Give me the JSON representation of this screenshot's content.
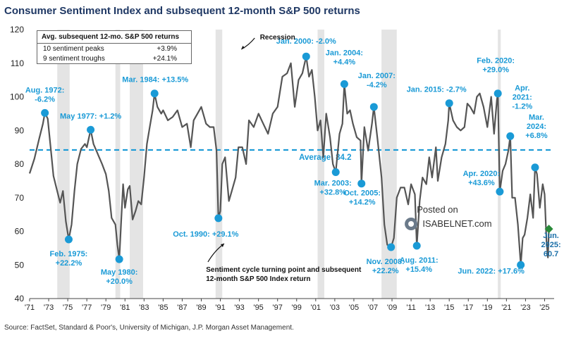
{
  "title": "Consumer Sentiment Index and subsequent 12-month S&P 500 returns",
  "source": "Source: FactSet, Standard & Poor's, University of Michigan, J.P. Morgan Asset Management.",
  "watermark": {
    "line1": "Posted on",
    "line2": "ISABELNET.com"
  },
  "table": {
    "header": "Avg. subsequent 12-mo. S&P 500 returns",
    "rows": [
      {
        "label": "10 sentiment peaks",
        "value": "+3.9%"
      },
      {
        "label": "9 sentiment troughs",
        "value": "+24.1%"
      }
    ]
  },
  "colors": {
    "line": "#555555",
    "accent": "#1a9ad6",
    "average": "#1a9ad6",
    "recession": "#e4e4e4",
    "title": "#1f3864"
  },
  "chart_data": {
    "type": "line",
    "title": "Consumer Sentiment Index and subsequent 12-month S&P 500 returns",
    "xlim": [
      1971,
      2026
    ],
    "ylim": [
      40,
      120
    ],
    "yticks": [
      40,
      50,
      60,
      70,
      80,
      90,
      100,
      110,
      120
    ],
    "xticks": [
      "'71",
      "'73",
      "'75",
      "'77",
      "'79",
      "'81",
      "'83",
      "'85",
      "'87",
      "'89",
      "'91",
      "'93",
      "'95",
      "'97",
      "'99",
      "'01",
      "'03",
      "'05",
      "'07",
      "'09",
      "'11",
      "'13",
      "'15",
      "'17",
      "'19",
      "'21",
      "'23",
      "'25"
    ],
    "average": {
      "value": 84.2,
      "label": "Average: 84.2"
    },
    "recessions": [
      [
        1973.9,
        1975.2
      ],
      [
        1980.0,
        1980.5
      ],
      [
        1981.5,
        1982.9
      ],
      [
        1990.5,
        1991.2
      ],
      [
        2001.2,
        2001.9
      ],
      [
        2007.9,
        2009.5
      ],
      [
        2020.1,
        2020.4
      ]
    ],
    "recession_label": "Recession",
    "annotation_label": "Sentiment cycle turning point and subsequent 12-month S&P 500 Index return",
    "series": [
      {
        "points": [
          [
            1971.0,
            77.2
          ],
          [
            1971.5,
            81.6
          ],
          [
            1972.0,
            87.5
          ],
          [
            1972.4,
            92.0
          ],
          [
            1972.6,
            95.2
          ],
          [
            1972.9,
            93.5
          ],
          [
            1973.2,
            85.0
          ],
          [
            1973.5,
            76.5
          ],
          [
            1973.8,
            73.0
          ],
          [
            1974.2,
            68.5
          ],
          [
            1974.5,
            72.0
          ],
          [
            1974.8,
            63.0
          ],
          [
            1975.1,
            57.6
          ],
          [
            1975.4,
            62.0
          ],
          [
            1975.7,
            72.0
          ],
          [
            1976.0,
            80.0
          ],
          [
            1976.4,
            84.5
          ],
          [
            1976.8,
            86.0
          ],
          [
            1977.0,
            85.0
          ],
          [
            1977.4,
            90.2
          ],
          [
            1977.7,
            86.0
          ],
          [
            1978.0,
            84.0
          ],
          [
            1978.3,
            82.0
          ],
          [
            1978.6,
            80.0
          ],
          [
            1979.0,
            77.0
          ],
          [
            1979.3,
            72.0
          ],
          [
            1979.6,
            64.0
          ],
          [
            1980.0,
            62.0
          ],
          [
            1980.2,
            56.0
          ],
          [
            1980.4,
            51.7
          ],
          [
            1980.6,
            63.0
          ],
          [
            1980.8,
            74.0
          ],
          [
            1981.0,
            67.0
          ],
          [
            1981.3,
            72.5
          ],
          [
            1981.5,
            73.5
          ],
          [
            1981.8,
            63.5
          ],
          [
            1982.1,
            66.0
          ],
          [
            1982.4,
            69.0
          ],
          [
            1982.7,
            68.0
          ],
          [
            1983.0,
            76.0
          ],
          [
            1983.3,
            86.0
          ],
          [
            1983.6,
            91.0
          ],
          [
            1983.9,
            96.0
          ],
          [
            1984.1,
            101.0
          ],
          [
            1984.4,
            97.0
          ],
          [
            1984.8,
            95.0
          ],
          [
            1985.0,
            96.0
          ],
          [
            1985.5,
            93.0
          ],
          [
            1986.0,
            94.0
          ],
          [
            1986.5,
            96.0
          ],
          [
            1987.0,
            91.0
          ],
          [
            1987.5,
            92.0
          ],
          [
            1987.9,
            85.0
          ],
          [
            1988.2,
            93.0
          ],
          [
            1988.6,
            95.0
          ],
          [
            1989.0,
            97.0
          ],
          [
            1989.5,
            92.0
          ],
          [
            1989.9,
            91.0
          ],
          [
            1990.3,
            91.0
          ],
          [
            1990.6,
            84.0
          ],
          [
            1990.8,
            63.9
          ],
          [
            1991.0,
            66.0
          ],
          [
            1991.2,
            80.0
          ],
          [
            1991.5,
            82.0
          ],
          [
            1991.9,
            69.0
          ],
          [
            1992.2,
            72.0
          ],
          [
            1992.6,
            76.0
          ],
          [
            1992.9,
            85.0
          ],
          [
            1993.3,
            85.0
          ],
          [
            1993.7,
            80.0
          ],
          [
            1994.0,
            93.0
          ],
          [
            1994.5,
            91.0
          ],
          [
            1995.0,
            95.0
          ],
          [
            1995.5,
            92.0
          ],
          [
            1996.0,
            89.0
          ],
          [
            1996.5,
            95.0
          ],
          [
            1997.0,
            97.0
          ],
          [
            1997.5,
            106.0
          ],
          [
            1998.0,
            107.0
          ],
          [
            1998.4,
            110.0
          ],
          [
            1998.8,
            97.0
          ],
          [
            1999.2,
            105.0
          ],
          [
            1999.6,
            107.0
          ],
          [
            2000.0,
            112.0
          ],
          [
            2000.3,
            106.0
          ],
          [
            2000.6,
            108.0
          ],
          [
            2000.9,
            100.0
          ],
          [
            2001.2,
            90.0
          ],
          [
            2001.5,
            93.0
          ],
          [
            2001.8,
            82.0
          ],
          [
            2002.1,
            95.0
          ],
          [
            2002.5,
            88.0
          ],
          [
            2002.8,
            80.0
          ],
          [
            2003.1,
            77.6
          ],
          [
            2003.5,
            89.0
          ],
          [
            2003.8,
            92.0
          ],
          [
            2004.0,
            103.8
          ],
          [
            2004.3,
            95.0
          ],
          [
            2004.6,
            96.0
          ],
          [
            2004.9,
            92.0
          ],
          [
            2005.3,
            88.0
          ],
          [
            2005.7,
            87.0
          ],
          [
            2005.8,
            74.2
          ],
          [
            2006.1,
            91.0
          ],
          [
            2006.5,
            84.0
          ],
          [
            2006.9,
            92.0
          ],
          [
            2007.1,
            97.0
          ],
          [
            2007.5,
            87.0
          ],
          [
            2007.9,
            76.0
          ],
          [
            2008.2,
            62.0
          ],
          [
            2008.5,
            56.0
          ],
          [
            2008.9,
            55.3
          ],
          [
            2009.2,
            58.0
          ],
          [
            2009.5,
            70.0
          ],
          [
            2009.9,
            73.0
          ],
          [
            2010.3,
            73.0
          ],
          [
            2010.7,
            68.0
          ],
          [
            2011.0,
            74.0
          ],
          [
            2011.4,
            71.0
          ],
          [
            2011.6,
            55.7
          ],
          [
            2011.9,
            69.0
          ],
          [
            2012.2,
            76.0
          ],
          [
            2012.6,
            74.0
          ],
          [
            2012.9,
            82.0
          ],
          [
            2013.2,
            76.0
          ],
          [
            2013.6,
            85.0
          ],
          [
            2013.8,
            75.0
          ],
          [
            2014.2,
            82.0
          ],
          [
            2014.6,
            86.0
          ],
          [
            2014.9,
            93.0
          ],
          [
            2015.0,
            98.1
          ],
          [
            2015.4,
            93.0
          ],
          [
            2015.8,
            91.0
          ],
          [
            2016.2,
            90.0
          ],
          [
            2016.6,
            91.0
          ],
          [
            2016.9,
            98.0
          ],
          [
            2017.2,
            97.0
          ],
          [
            2017.6,
            95.0
          ],
          [
            2017.9,
            100.0
          ],
          [
            2018.2,
            101.0
          ],
          [
            2018.6,
            97.0
          ],
          [
            2019.0,
            91.0
          ],
          [
            2019.4,
            100.0
          ],
          [
            2019.7,
            89.0
          ],
          [
            2020.0,
            99.0
          ],
          [
            2020.1,
            101.0
          ],
          [
            2020.3,
            71.8
          ],
          [
            2020.6,
            78.0
          ],
          [
            2020.9,
            80.0
          ],
          [
            2021.2,
            84.0
          ],
          [
            2021.4,
            88.3
          ],
          [
            2021.6,
            70.0
          ],
          [
            2021.9,
            70.0
          ],
          [
            2022.2,
            62.0
          ],
          [
            2022.5,
            50.0
          ],
          [
            2022.7,
            58.0
          ],
          [
            2022.9,
            59.0
          ],
          [
            2023.2,
            64.0
          ],
          [
            2023.5,
            71.0
          ],
          [
            2023.8,
            64.0
          ],
          [
            2024.0,
            79.0
          ],
          [
            2024.2,
            77.0
          ],
          [
            2024.5,
            67.0
          ],
          [
            2024.8,
            74.0
          ],
          [
            2025.0,
            71.0
          ],
          [
            2025.2,
            57.0
          ],
          [
            2025.35,
            52.2
          ],
          [
            2025.45,
            60.7
          ]
        ]
      }
    ],
    "markers": [
      {
        "x": 1972.6,
        "y": 95.2,
        "lines": [
          "Aug. 1972:",
          "-6.2%"
        ],
        "dx": 0,
        "dy": -16,
        "anchor": "middle"
      },
      {
        "x": 1975.1,
        "y": 57.6,
        "lines": [
          "Feb. 1975:",
          "+22.2%"
        ],
        "dx": 0,
        "dy": 24,
        "anchor": "middle"
      },
      {
        "x": 1977.4,
        "y": 90.2,
        "lines": [
          "May 1977: +1.2%"
        ],
        "dx": 0,
        "dy": -16,
        "anchor": "middle"
      },
      {
        "x": 1980.4,
        "y": 51.7,
        "lines": [
          "May 1980:",
          "+20.0%"
        ],
        "dx": 0,
        "dy": 22,
        "anchor": "middle"
      },
      {
        "x": 1984.1,
        "y": 101.0,
        "lines": [
          "Mar. 1984: +13.5%"
        ],
        "dx": 1,
        "dy": -16,
        "anchor": "middle"
      },
      {
        "x": 1990.8,
        "y": 63.9,
        "lines": [
          "Oct. 1990: +29.1%"
        ],
        "dx": -18,
        "dy": 26,
        "anchor": "middle"
      },
      {
        "x": 2000.0,
        "y": 112.0,
        "lines": [
          "Jan. 2000: -2.0%"
        ],
        "dx": 0,
        "dy": -18,
        "anchor": "middle"
      },
      {
        "x": 2003.1,
        "y": 77.6,
        "lines": [
          "Mar. 2003:",
          "+32.8%"
        ],
        "dx": -4,
        "dy": 19,
        "anchor": "middle"
      },
      {
        "x": 2004.0,
        "y": 103.8,
        "lines": [
          "Jan. 2004:",
          "+4.4%"
        ],
        "dx": 0,
        "dy": -28,
        "anchor": "middle"
      },
      {
        "x": 2005.8,
        "y": 74.2,
        "lines": [
          "Oct. 2005:",
          "+14.2%"
        ],
        "dx": 1,
        "dy": 17,
        "anchor": "middle"
      },
      {
        "x": 2007.1,
        "y": 97.0,
        "lines": [
          "Jan. 2007:",
          "-4.2%"
        ],
        "dx": 4,
        "dy": -28,
        "anchor": "middle"
      },
      {
        "x": 2008.9,
        "y": 55.3,
        "lines": [
          "Nov. 2008:",
          "+22.2%"
        ],
        "dx": -8,
        "dy": 24,
        "anchor": "middle"
      },
      {
        "x": 2011.6,
        "y": 55.7,
        "lines": [
          "Aug. 2011:",
          "+15.4%"
        ],
        "dx": 3,
        "dy": 24,
        "anchor": "middle"
      },
      {
        "x": 2015.0,
        "y": 98.1,
        "lines": [
          "Jan. 2015: -2.7%"
        ],
        "dx": -18,
        "dy": -16,
        "anchor": "middle"
      },
      {
        "x": 2020.1,
        "y": 101.0,
        "lines": [
          "Feb. 2020:",
          "+29.0%"
        ],
        "dx": -3,
        "dy": -30,
        "anchor": "middle"
      },
      {
        "x": 2020.3,
        "y": 71.8,
        "lines": [
          "Apr. 2020:",
          "+43.6%"
        ],
        "dx": -26,
        "dy": -9,
        "anchor": "middle"
      },
      {
        "x": 2021.4,
        "y": 88.3,
        "lines": [
          "Apr.",
          "2021:",
          "-1.2%"
        ],
        "dx": 17,
        "dy": -39,
        "anchor": "middle"
      },
      {
        "x": 2022.5,
        "y": 50.0,
        "lines": [
          "Jun. 2022: +17.6%"
        ],
        "dx": -42,
        "dy": 12,
        "anchor": "middle"
      },
      {
        "x": 2024.0,
        "y": 79.0,
        "lines": [
          "Mar.",
          "2024:",
          "+6.8%"
        ],
        "dx": 2,
        "dy": -42,
        "anchor": "middle"
      },
      {
        "x": 2025.45,
        "y": 60.7,
        "lines": [
          "Jun.",
          "2025:",
          "60.7"
        ],
        "dx": 3,
        "dy": 13,
        "anchor": "middle",
        "color": "#2a8a3a",
        "shape": "diamond"
      }
    ]
  }
}
